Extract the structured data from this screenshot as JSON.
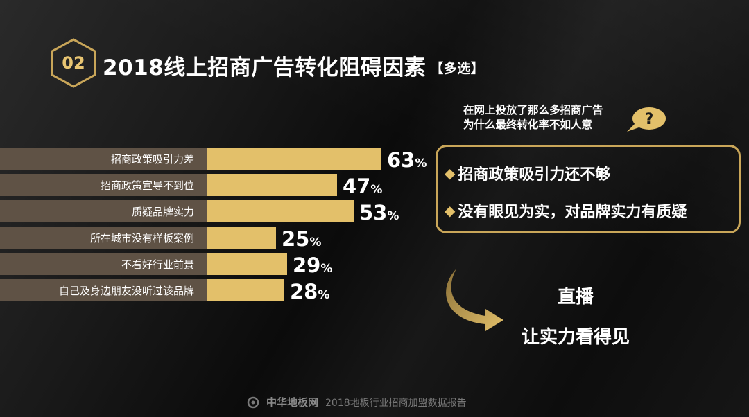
{
  "header": {
    "number": "02",
    "title": "2018线上招商广告转化阻碍因素",
    "tag": "【多选】"
  },
  "question": {
    "line1": "在网上投放了那么多招商广告",
    "line2": "为什么最终转化率不如人意",
    "icon": "question-bubble-icon"
  },
  "chart_data": {
    "type": "bar",
    "orientation": "horizontal",
    "categories": [
      "招商政策吸引力差",
      "招商政策宣导不到位",
      "质疑品牌实力",
      "所在城市没有样板案例",
      "不看好行业前景",
      "自己及身边朋友没听过该品牌"
    ],
    "values": [
      63,
      47,
      53,
      25,
      29,
      28
    ],
    "unit": "%",
    "bar_color": "#e3c06a",
    "label_band_color": "#5f5245"
  },
  "reasons": {
    "items": [
      "招商政策吸引力还不够",
      "没有眼见为实，对品牌实力有质疑"
    ],
    "bullet": "◆"
  },
  "solution": {
    "line1": "直播",
    "line2": "让实力看得见"
  },
  "footer": {
    "logo": "中华地板网",
    "report": "2018地板行业招商加盟数据报告"
  },
  "colors": {
    "accent": "#e3c06a",
    "border": "#c9a659",
    "background": "#111111"
  }
}
